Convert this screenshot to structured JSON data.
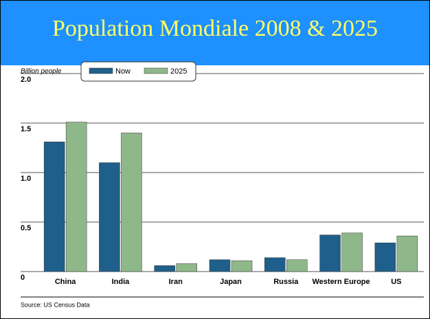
{
  "chart_data": {
    "type": "bar",
    "title": "Population Mondiale 2008 & 2025",
    "ylabel": "Billion people",
    "source": "Source: US Census Data",
    "categories": [
      "China",
      "India",
      "Iran",
      "Japan",
      "Russia",
      "Western Europe",
      "US"
    ],
    "series": [
      {
        "name": "Now",
        "color": "#1f5f8b",
        "values": [
          1.31,
          1.1,
          0.06,
          0.12,
          0.14,
          0.37,
          0.29
        ]
      },
      {
        "name": "2025",
        "color": "#8fb88a",
        "values": [
          1.51,
          1.4,
          0.08,
          0.11,
          0.12,
          0.39,
          0.36
        ]
      }
    ],
    "ylim": [
      0,
      2.0
    ],
    "yticks": [
      0,
      0.5,
      {
        "value": 1.0,
        "label": "1.0"
      },
      1.5,
      {
        "value": 2.0,
        "label": "2.0"
      }
    ],
    "grid": true,
    "legend": "top"
  }
}
